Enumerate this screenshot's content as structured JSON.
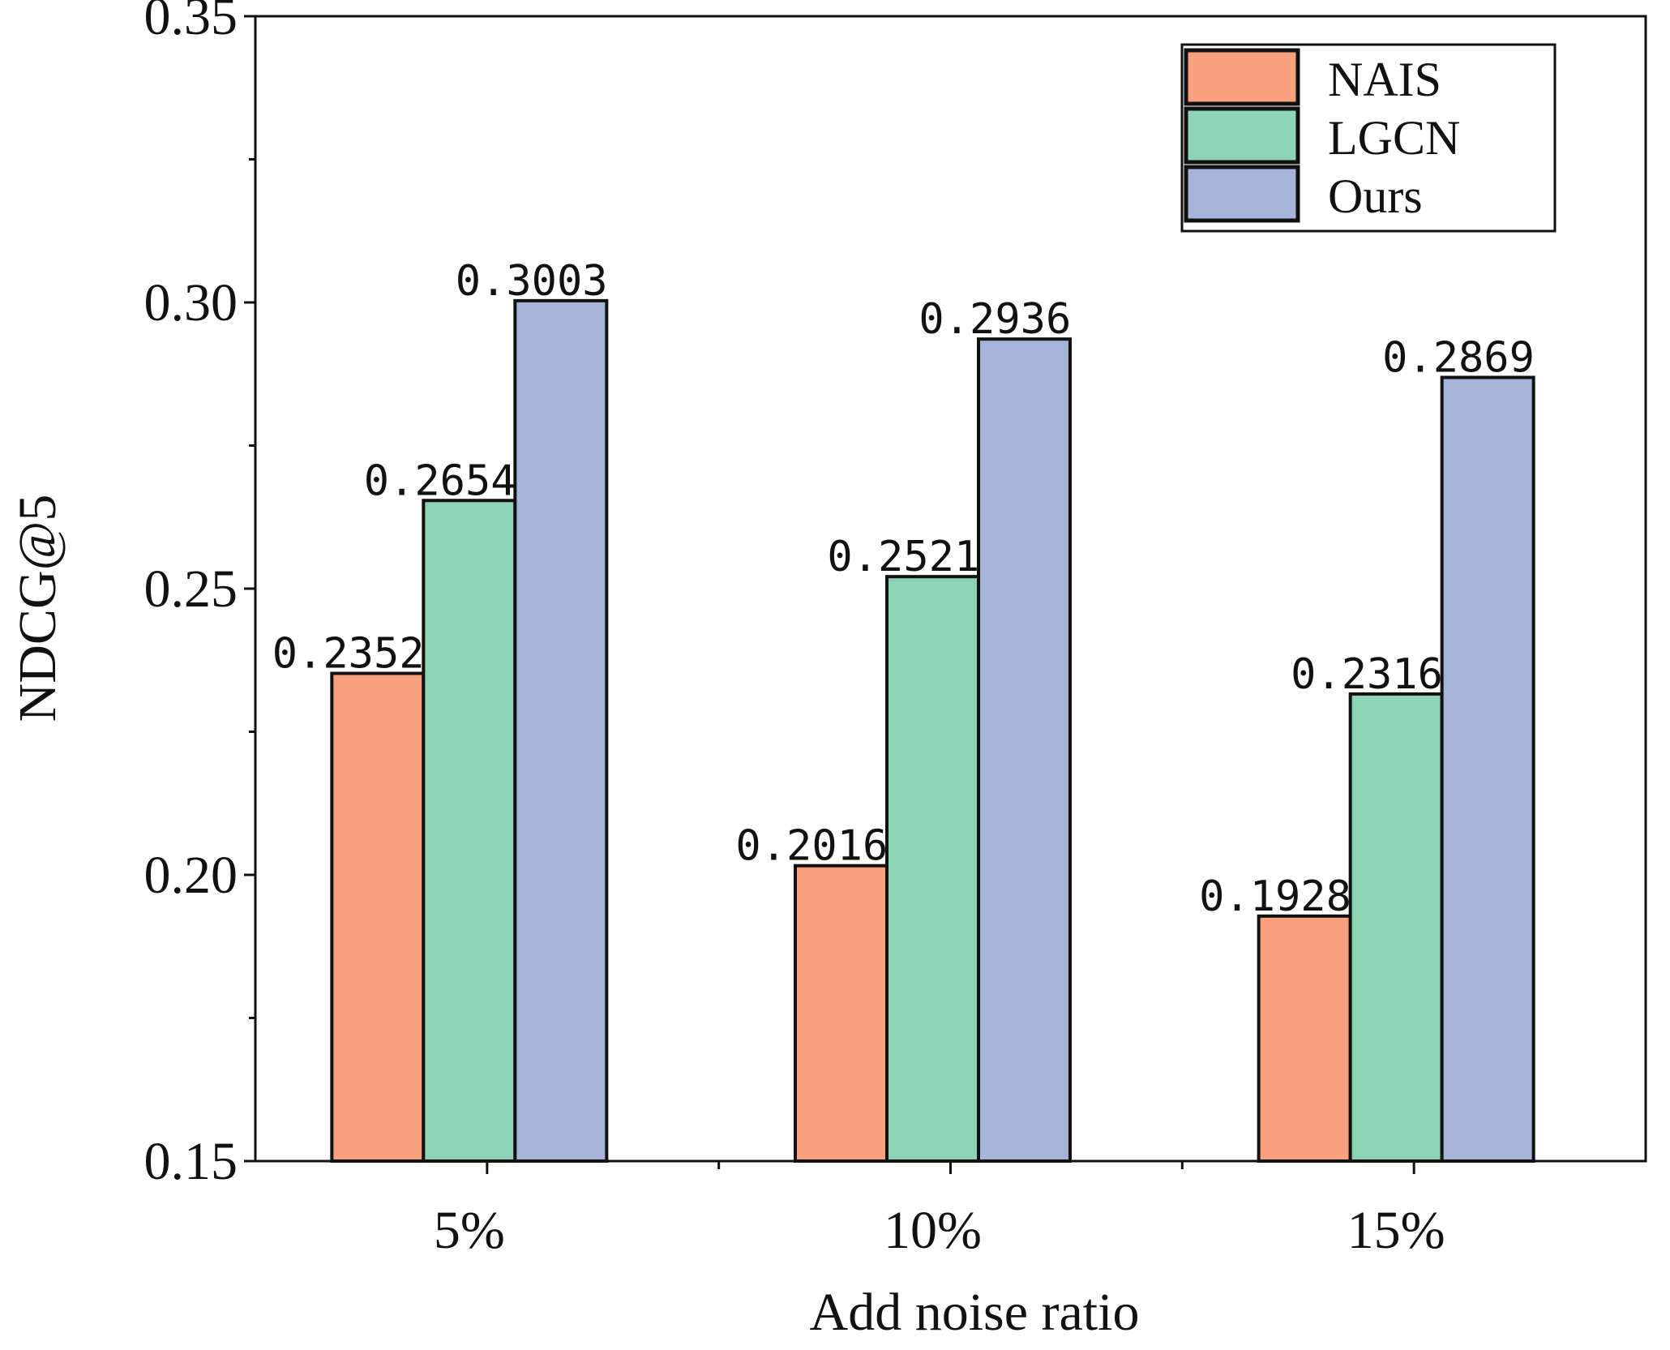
{
  "chart_data": {
    "type": "bar",
    "title": "",
    "xlabel": "Add noise ratio",
    "ylabel": "NDCG@5",
    "categories": [
      "5%",
      "10%",
      "15%"
    ],
    "ylim": [
      0.15,
      0.35
    ],
    "yticks": [
      "0.15",
      "0.20",
      "0.25",
      "0.30",
      "0.35"
    ],
    "series": [
      {
        "name": "NAIS",
        "color": "#F9A07F",
        "values": [
          0.2352,
          0.2016,
          0.1928
        ],
        "labels": [
          "0.2352",
          "0.2016",
          "0.1928"
        ]
      },
      {
        "name": "LGCN",
        "color": "#8DD3B5",
        "values": [
          0.2654,
          0.2521,
          0.2316
        ],
        "labels": [
          "0.2654",
          "0.2521",
          "0.2316"
        ]
      },
      {
        "name": "Ours",
        "color": "#A6B4DA",
        "values": [
          0.3003,
          0.2936,
          0.2869
        ],
        "labels": [
          "0.3003",
          "0.2936",
          "0.2869"
        ]
      }
    ],
    "legend_position": "top-right",
    "grid": false
  }
}
